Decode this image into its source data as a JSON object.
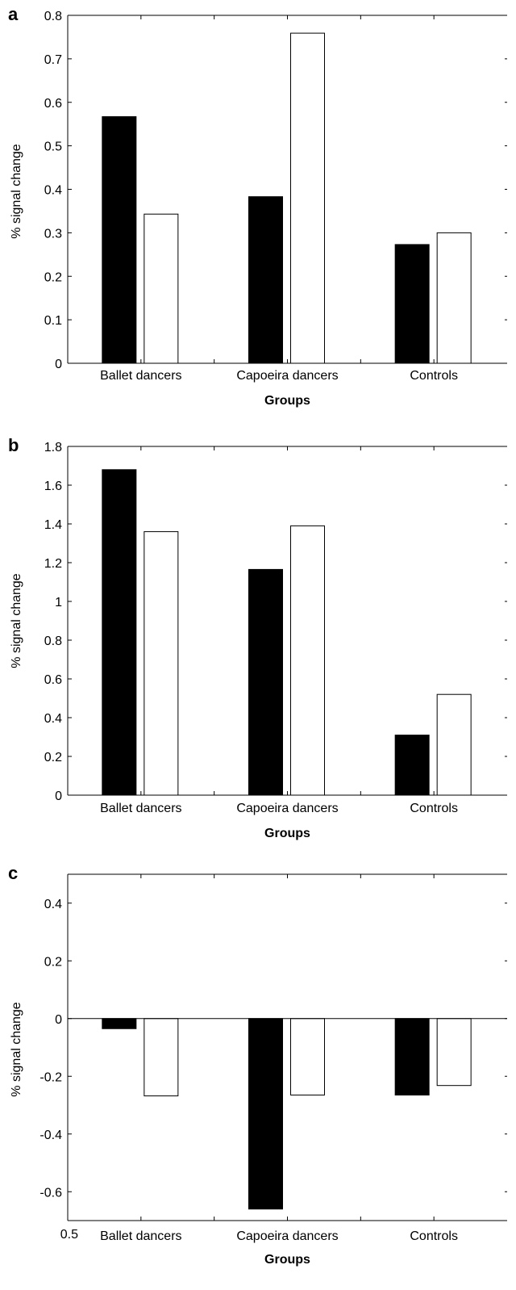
{
  "chart_data": [
    {
      "panel": "a",
      "type": "bar",
      "categories": [
        "Ballet dancers",
        "Capoeira dancers",
        "Controls"
      ],
      "series": [
        {
          "fill": "#000000",
          "values": [
            0.567,
            0.383,
            0.273
          ]
        },
        {
          "fill": "#ffffff",
          "values": [
            0.343,
            0.759,
            0.3
          ]
        }
      ],
      "xlabel": "Groups",
      "ylabel": "% signal change",
      "ylim": [
        0,
        0.8
      ],
      "yticks": [
        0,
        0.1,
        0.2,
        0.3,
        0.4,
        0.5,
        0.6,
        0.7,
        0.8
      ],
      "ytick_labels": [
        "0",
        "0.1",
        "0.2",
        "0.3",
        "0.4",
        "0.5",
        "0.6",
        "0.7",
        "0.8"
      ],
      "grid": false
    },
    {
      "panel": "b",
      "type": "bar",
      "categories": [
        "Ballet dancers",
        "Capoeira dancers",
        "Controls"
      ],
      "series": [
        {
          "fill": "#000000",
          "values": [
            1.68,
            1.165,
            0.31
          ]
        },
        {
          "fill": "#ffffff",
          "values": [
            1.36,
            1.39,
            0.52
          ]
        }
      ],
      "xlabel": "Groups",
      "ylabel": "% signal change",
      "ylim": [
        0,
        1.8
      ],
      "yticks": [
        0,
        0.2,
        0.4,
        0.6,
        0.8,
        1.0,
        1.2,
        1.4,
        1.6,
        1.8
      ],
      "ytick_labels": [
        "0",
        "0.2",
        "0.4",
        "0.6",
        "0.8",
        "1",
        "1.2",
        "1.4",
        "1.6",
        "1.8"
      ],
      "grid": false
    },
    {
      "panel": "c",
      "type": "bar",
      "categories": [
        "Ballet dancers",
        "Capoeira dancers",
        "Controls"
      ],
      "series": [
        {
          "fill": "#000000",
          "values": [
            -0.035,
            -0.66,
            -0.265
          ]
        },
        {
          "fill": "#ffffff",
          "values": [
            -0.268,
            -0.265,
            -0.232
          ]
        }
      ],
      "xlabel": "Groups",
      "ylabel": "% signal change",
      "ylim": [
        -0.7,
        0.5
      ],
      "yticks": [
        -0.6,
        -0.4,
        -0.2,
        0,
        0.2,
        0.4
      ],
      "ytick_labels": [
        "-0.6",
        "-0.4",
        "-0.2",
        "0",
        "0.2",
        "0.4"
      ],
      "bottom_label": "0.5",
      "grid": false
    }
  ]
}
